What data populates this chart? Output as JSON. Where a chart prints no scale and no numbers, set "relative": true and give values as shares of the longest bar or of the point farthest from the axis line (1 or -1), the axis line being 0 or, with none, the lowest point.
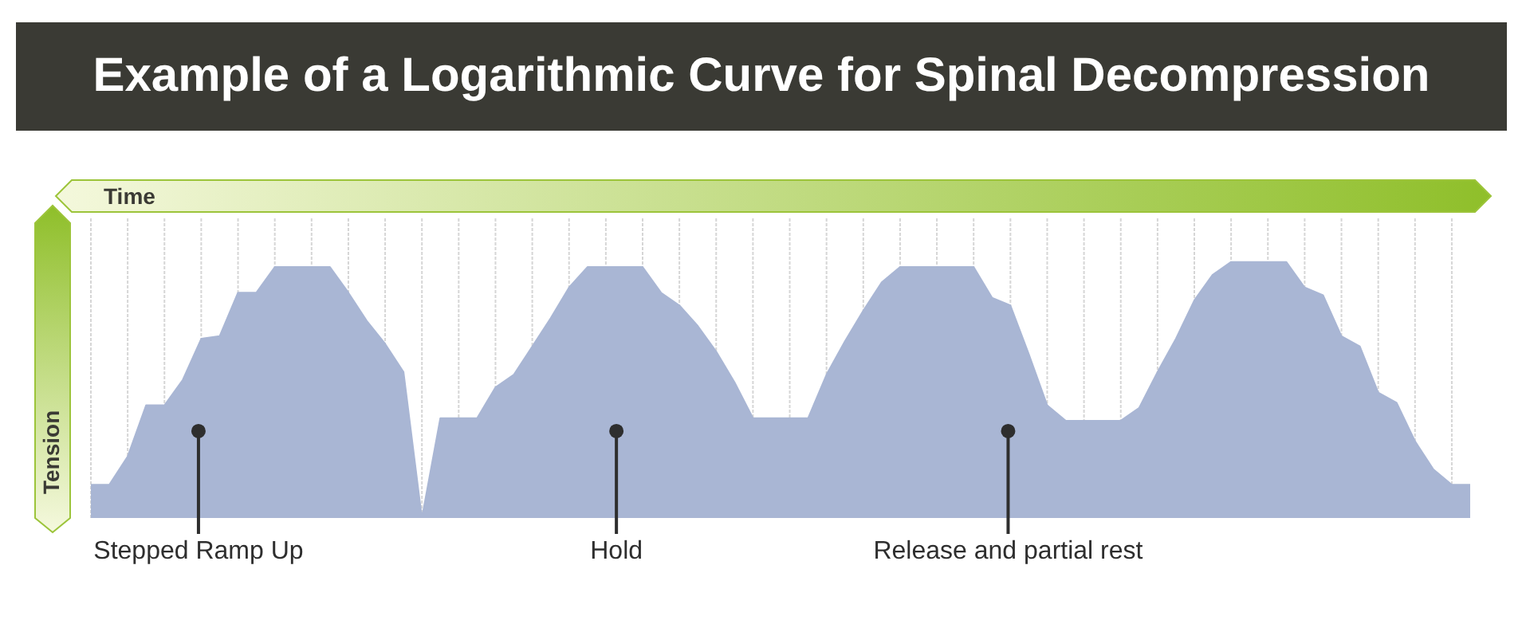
{
  "chart_data": {
    "type": "area",
    "title": "Example of a Logarithmic Curve for Spinal Decompression",
    "xlabel": "Time",
    "ylabel": "Tension",
    "relative": true,
    "grid": "x",
    "legend": false,
    "categories": [
      null,
      null,
      null,
      null,
      null,
      null,
      null,
      null,
      null,
      null,
      null,
      null,
      null,
      null,
      null,
      null,
      null,
      null,
      null,
      null,
      null,
      null,
      null,
      null,
      null,
      null,
      null,
      null,
      null,
      null,
      null,
      null,
      null,
      null,
      null,
      null,
      null,
      null,
      null,
      null,
      null,
      null,
      null,
      null,
      null,
      null,
      null,
      null,
      null,
      null,
      null,
      null,
      null,
      null,
      null,
      null,
      null,
      null,
      null,
      null,
      null,
      null,
      null,
      null,
      null,
      null,
      null,
      null,
      null,
      null,
      null,
      null,
      null,
      null,
      null,
      null
    ],
    "series": [
      {
        "color": "#a9b6d4",
        "values": [
          0.13,
          0.13,
          0.24,
          0.44,
          0.44,
          0.54,
          0.7,
          0.71,
          0.88,
          0.88,
          0.98,
          0.98,
          0.98,
          0.98,
          0.88,
          0.77,
          0.68,
          0.57,
          0,
          0.39,
          0.39,
          0.39,
          0.51,
          0.56,
          0.67,
          0.78,
          0.9,
          0.98,
          0.98,
          0.98,
          0.98,
          0.88,
          0.83,
          0.75,
          0.65,
          0.53,
          0.39,
          0.39,
          0.39,
          0.39,
          0.56,
          0.69,
          0.81,
          0.92,
          0.98,
          0.98,
          0.98,
          0.98,
          0.98,
          0.86,
          0.83,
          0.64,
          0.44,
          0.38,
          0.38,
          0.38,
          0.38,
          0.43,
          0.57,
          0.7,
          0.85,
          0.95,
          1,
          1,
          1,
          1,
          0.9,
          0.87,
          0.71,
          0.67,
          0.49,
          0.45,
          0.3,
          0.19,
          0.13,
          0.13
        ]
      }
    ],
    "annotations": [
      "Stepped Ramp Up",
      "Hold",
      "Release and partial rest"
    ]
  }
}
